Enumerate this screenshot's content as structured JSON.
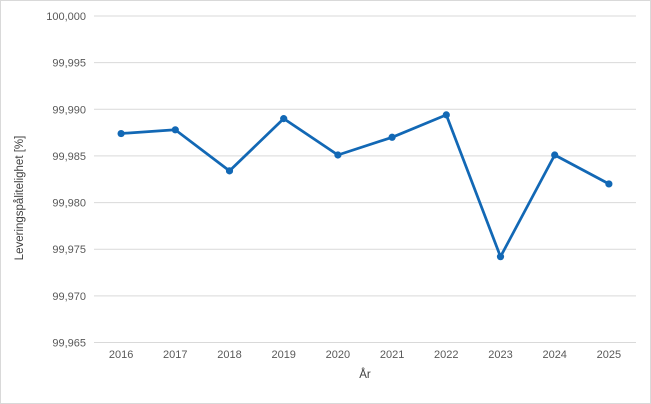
{
  "chart_data": {
    "type": "line",
    "title": "",
    "xlabel": "År",
    "ylabel": "Leveringspålitelighet [%]",
    "categories": [
      "2016",
      "2017",
      "2018",
      "2019",
      "2020",
      "2021",
      "2022",
      "2023",
      "2024",
      "2025"
    ],
    "series": [
      {
        "name": "Leveringspålitelighet",
        "values": [
          99.9874,
          99.9878,
          99.9834,
          99.989,
          99.9851,
          99.987,
          99.9894,
          99.9742,
          99.9851,
          99.982
        ]
      }
    ],
    "ylim": [
      99.965,
      100.0
    ],
    "yticks": {
      "values": [
        100.0,
        99.995,
        99.99,
        99.985,
        99.98,
        99.975,
        99.97,
        99.965
      ],
      "labels": [
        "100,000",
        "99,995",
        "99,990",
        "99,985",
        "99,980",
        "99,975",
        "99,970",
        "99,965"
      ]
    },
    "grid": "horizontal",
    "legend": "none",
    "colors": {
      "line": "#1268b5",
      "marker": "#1268b5",
      "gridline": "#d9d9d9",
      "tick_text": "#595959",
      "axis_title_text": "#404040",
      "border": "#d9d9d9",
      "background": "#ffffff"
    }
  }
}
